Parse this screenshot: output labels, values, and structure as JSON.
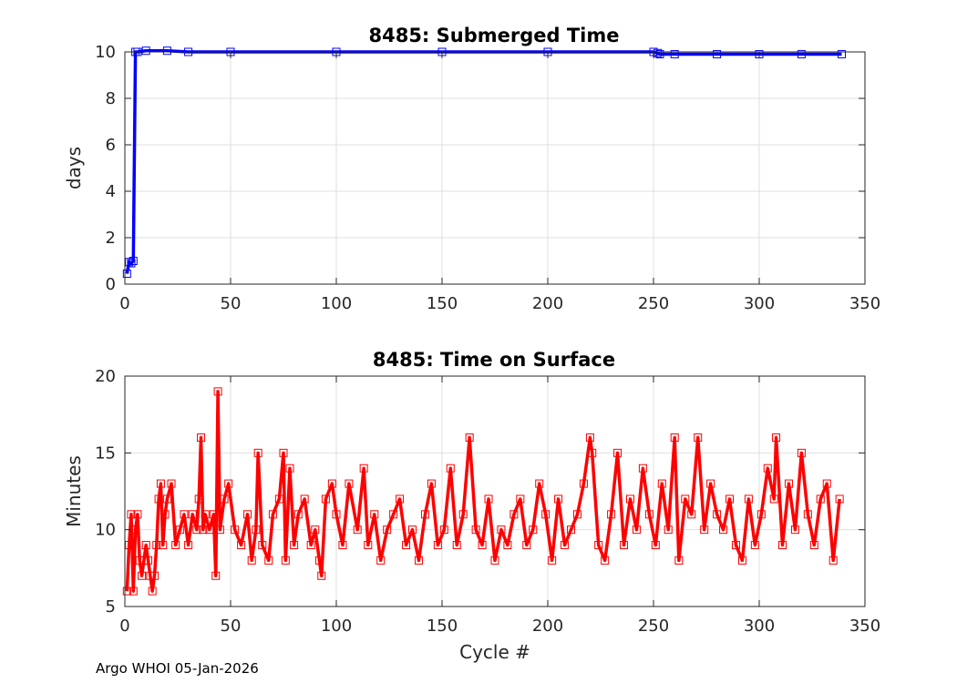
{
  "chart_data": [
    {
      "type": "line",
      "title": "8485: Submerged Time",
      "xlabel": "",
      "ylabel": "days",
      "xlim": [
        0,
        350
      ],
      "ylim": [
        0,
        10
      ],
      "xticks": [
        0,
        50,
        100,
        150,
        200,
        250,
        300,
        350
      ],
      "yticks": [
        0,
        2,
        4,
        6,
        8,
        10
      ],
      "grid": true,
      "marker": "square",
      "color": "#0000ff",
      "series": [
        {
          "x": [
            1,
            2,
            3,
            4,
            5,
            6,
            10,
            20,
            30,
            50,
            100,
            150,
            200,
            250,
            252,
            253,
            260,
            280,
            300,
            320,
            339
          ],
          "y": [
            0.45,
            0.95,
            0.9,
            1.0,
            10.0,
            10.0,
            10.05,
            10.05,
            10.0,
            10.0,
            10.0,
            10.0,
            10.0,
            10.0,
            9.95,
            9.9,
            9.9,
            9.9,
            9.9,
            9.9,
            9.9
          ]
        }
      ]
    },
    {
      "type": "line",
      "title": "8485: Time on Surface",
      "xlabel": "Cycle #",
      "ylabel": "Minutes",
      "xlim": [
        0,
        350
      ],
      "ylim": [
        5,
        20
      ],
      "xticks": [
        0,
        50,
        100,
        150,
        200,
        250,
        300,
        350
      ],
      "yticks": [
        5,
        10,
        15,
        20
      ],
      "grid": true,
      "marker": "square",
      "color": "#ff0000",
      "series": [
        {
          "x": [
            1,
            2,
            3,
            4,
            5,
            6,
            7,
            8,
            9,
            10,
            11,
            12,
            13,
            14,
            15,
            16,
            17,
            18,
            19,
            20,
            22,
            24,
            26,
            28,
            30,
            32,
            34,
            35,
            36,
            37,
            38,
            40,
            42,
            43,
            44,
            45,
            47,
            49,
            52,
            55,
            58,
            60,
            62,
            63,
            65,
            68,
            70,
            73,
            75,
            76,
            78,
            80,
            82,
            85,
            88,
            90,
            92,
            93,
            95,
            98,
            100,
            103,
            106,
            110,
            113,
            115,
            118,
            121,
            124,
            127,
            130,
            133,
            136,
            139,
            142,
            145,
            148,
            151,
            154,
            157,
            160,
            163,
            166,
            169,
            172,
            175,
            178,
            181,
            184,
            187,
            190,
            193,
            196,
            199,
            202,
            205,
            208,
            211,
            214,
            217,
            220,
            221,
            224,
            227,
            230,
            233,
            236,
            239,
            242,
            245,
            248,
            251,
            254,
            257,
            260,
            262,
            265,
            268,
            271,
            274,
            277,
            280,
            283,
            286,
            289,
            292,
            295,
            298,
            301,
            304,
            307,
            308,
            311,
            314,
            317,
            320,
            323,
            326,
            329,
            332,
            335,
            338
          ],
          "y": [
            6,
            9,
            11,
            6,
            10,
            11,
            8,
            7,
            8,
            9,
            8,
            7,
            6,
            7,
            9,
            12,
            13,
            9,
            11,
            12,
            13,
            9,
            10,
            11,
            9,
            11,
            10,
            12,
            16,
            10,
            11,
            10,
            11,
            7,
            19,
            10,
            12,
            13,
            10,
            9,
            11,
            8,
            10,
            15,
            9,
            8,
            11,
            12,
            15,
            8,
            14,
            9,
            11,
            12,
            9,
            10,
            8,
            7,
            12,
            13,
            11,
            9,
            13,
            10,
            14,
            9,
            11,
            8,
            10,
            11,
            12,
            9,
            10,
            8,
            11,
            13,
            9,
            10,
            14,
            9,
            11,
            16,
            10,
            9,
            12,
            8,
            10,
            9,
            11,
            12,
            9,
            10,
            13,
            11,
            8,
            12,
            9,
            10,
            11,
            13,
            16,
            15,
            9,
            8,
            11,
            15,
            9,
            12,
            10,
            14,
            11,
            9,
            13,
            10,
            16,
            8,
            12,
            11,
            16,
            10,
            13,
            11,
            10,
            12,
            9,
            8,
            12,
            9,
            11,
            14,
            12,
            16,
            9,
            13,
            10,
            15,
            11,
            9,
            12,
            13,
            8,
            12
          ]
        }
      ]
    }
  ],
  "footer": "Argo WHOI 05-Jan-2026"
}
